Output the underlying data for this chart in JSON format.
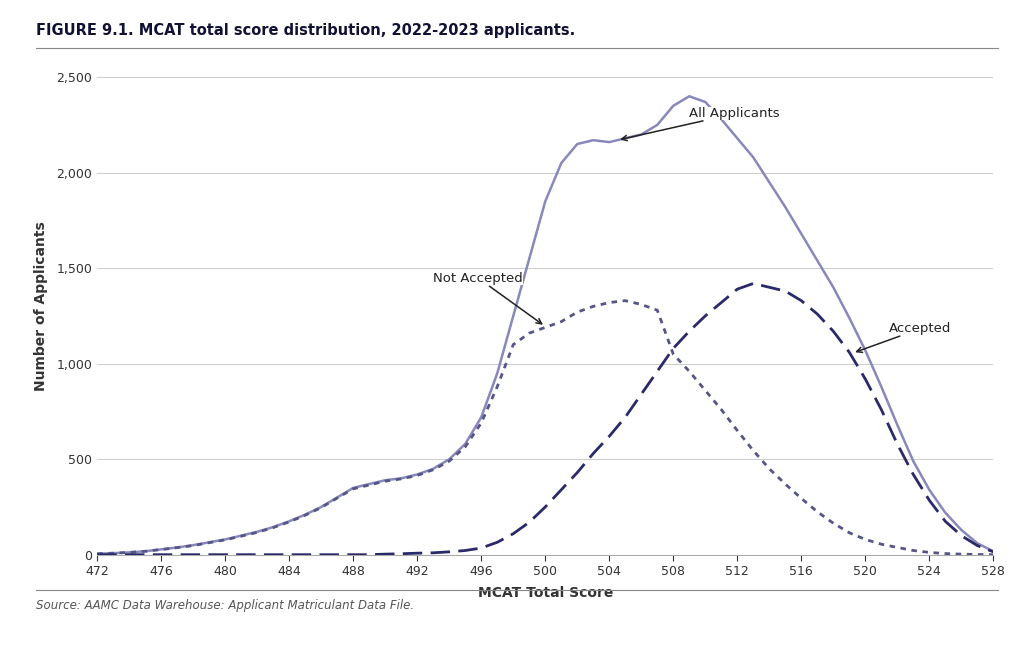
{
  "title": "FIGURE 9.1. MCAT total score distribution, 2022-2023 applicants.",
  "xlabel": "MCAT Total Score",
  "ylabel": "Number of Applicants",
  "source": "Source: AAMC Data Warehouse: Applicant Matriculant Data File.",
  "xlim": [
    472,
    528
  ],
  "ylim": [
    0,
    2600
  ],
  "yticks": [
    0,
    500,
    1000,
    1500,
    2000,
    2500
  ],
  "xticks": [
    472,
    476,
    480,
    484,
    488,
    492,
    496,
    500,
    504,
    508,
    512,
    516,
    520,
    524,
    528
  ],
  "all_applicants": {
    "x": [
      472,
      473,
      474,
      475,
      476,
      477,
      478,
      479,
      480,
      481,
      482,
      483,
      484,
      485,
      486,
      487,
      488,
      489,
      490,
      491,
      492,
      493,
      494,
      495,
      496,
      497,
      498,
      499,
      500,
      501,
      502,
      503,
      504,
      505,
      506,
      507,
      508,
      509,
      510,
      511,
      512,
      513,
      514,
      515,
      516,
      517,
      518,
      519,
      520,
      521,
      522,
      523,
      524,
      525,
      526,
      527,
      528
    ],
    "y": [
      5,
      8,
      12,
      18,
      28,
      38,
      50,
      65,
      80,
      100,
      120,
      145,
      175,
      210,
      250,
      300,
      350,
      370,
      390,
      400,
      420,
      450,
      500,
      580,
      720,
      950,
      1250,
      1550,
      1850,
      2050,
      2150,
      2170,
      2160,
      2180,
      2200,
      2250,
      2350,
      2400,
      2370,
      2280,
      2180,
      2080,
      1950,
      1820,
      1680,
      1540,
      1400,
      1240,
      1070,
      880,
      680,
      490,
      340,
      220,
      130,
      60,
      18
    ],
    "color": "#8888bb",
    "linewidth": 1.8,
    "label": "All Applicants"
  },
  "not_accepted": {
    "x": [
      472,
      473,
      474,
      475,
      476,
      477,
      478,
      479,
      480,
      481,
      482,
      483,
      484,
      485,
      486,
      487,
      488,
      489,
      490,
      491,
      492,
      493,
      494,
      495,
      496,
      497,
      498,
      499,
      500,
      501,
      502,
      503,
      504,
      505,
      506,
      507,
      508,
      509,
      510,
      511,
      512,
      513,
      514,
      515,
      516,
      517,
      518,
      519,
      520,
      521,
      522,
      523,
      524,
      525,
      526,
      527,
      528
    ],
    "y": [
      5,
      8,
      12,
      18,
      27,
      37,
      48,
      63,
      78,
      97,
      117,
      142,
      172,
      207,
      247,
      297,
      345,
      365,
      385,
      397,
      415,
      445,
      490,
      565,
      690,
      880,
      1100,
      1160,
      1190,
      1220,
      1270,
      1300,
      1320,
      1330,
      1310,
      1280,
      1050,
      960,
      860,
      760,
      650,
      545,
      450,
      370,
      295,
      225,
      165,
      115,
      80,
      55,
      38,
      22,
      12,
      6,
      3,
      1,
      0
    ],
    "color": "#555588",
    "linewidth": 1.8,
    "label": "Not Accepted"
  },
  "accepted": {
    "x": [
      472,
      473,
      474,
      475,
      476,
      477,
      478,
      479,
      480,
      481,
      482,
      483,
      484,
      485,
      486,
      487,
      488,
      489,
      490,
      491,
      492,
      493,
      494,
      495,
      496,
      497,
      498,
      499,
      500,
      501,
      502,
      503,
      504,
      505,
      506,
      507,
      508,
      509,
      510,
      511,
      512,
      513,
      514,
      515,
      516,
      517,
      518,
      519,
      520,
      521,
      522,
      523,
      524,
      525,
      526,
      527,
      528
    ],
    "y": [
      0,
      0,
      0,
      0,
      0,
      0,
      0,
      0,
      0,
      0,
      0,
      0,
      0,
      0,
      0,
      0,
      0,
      0,
      3,
      5,
      8,
      10,
      15,
      22,
      35,
      65,
      110,
      170,
      250,
      340,
      430,
      530,
      620,
      720,
      840,
      960,
      1080,
      1170,
      1250,
      1320,
      1390,
      1420,
      1400,
      1380,
      1330,
      1260,
      1170,
      1060,
      920,
      760,
      580,
      420,
      285,
      175,
      100,
      48,
      15
    ],
    "color": "#2a2a6a",
    "linewidth": 1.8,
    "label": "Accepted"
  },
  "annotation_all": {
    "text": "All Applicants",
    "xy_x": 504.5,
    "xy_y": 2170,
    "xt_x": 509,
    "xt_y": 2290,
    "fontsize": 9.5
  },
  "annotation_not_accepted": {
    "text": "Not Accepted",
    "xy_x": 500.0,
    "xy_y": 1195,
    "xt_x": 493,
    "xt_y": 1430,
    "fontsize": 9.5
  },
  "annotation_accepted": {
    "text": "Accepted",
    "xy_x": 519.2,
    "xy_y": 1055,
    "xt_x": 521.5,
    "xt_y": 1165,
    "fontsize": 9.5
  },
  "background_color": "#ffffff",
  "grid_color": "#cccccc",
  "title_color": "#111133",
  "axis_color": "#333333"
}
